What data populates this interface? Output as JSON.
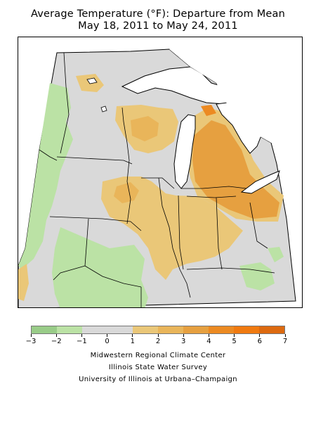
{
  "header": {
    "title_line1": "Average Temperature (°F): Departure from Mean",
    "title_line2": "May 18, 2011 to May 24, 2011"
  },
  "map": {
    "region": "Midwest United States",
    "base_color": "#d9d9d9",
    "water_color": "#ffffff"
  },
  "legend": {
    "bins": [
      {
        "range": [
          -3,
          -2
        ],
        "color": "#99cc88"
      },
      {
        "range": [
          -2,
          -1
        ],
        "color": "#bbe2a5"
      },
      {
        "range": [
          -1,
          0
        ],
        "color": "#d9d9d9"
      },
      {
        "range": [
          0,
          1
        ],
        "color": "#d9d9d9"
      },
      {
        "range": [
          1,
          2
        ],
        "color": "#eac778"
      },
      {
        "range": [
          2,
          3
        ],
        "color": "#e9b55a"
      },
      {
        "range": [
          3,
          4
        ],
        "color": "#e6a040"
      },
      {
        "range": [
          4,
          5
        ],
        "color": "#ec8a22"
      },
      {
        "range": [
          5,
          6
        ],
        "color": "#f07a10"
      },
      {
        "range": [
          6,
          7
        ],
        "color": "#dd6a10"
      }
    ],
    "tick_labels": [
      "−3",
      "−2",
      "−1",
      "0",
      "1",
      "2",
      "3",
      "4",
      "5",
      "6",
      "7"
    ]
  },
  "credits": {
    "line1": "Midwestern Regional Climate Center",
    "line2": "Illinois State Water Survey",
    "line3": "University of Illinois at Urbana–Champaign"
  }
}
